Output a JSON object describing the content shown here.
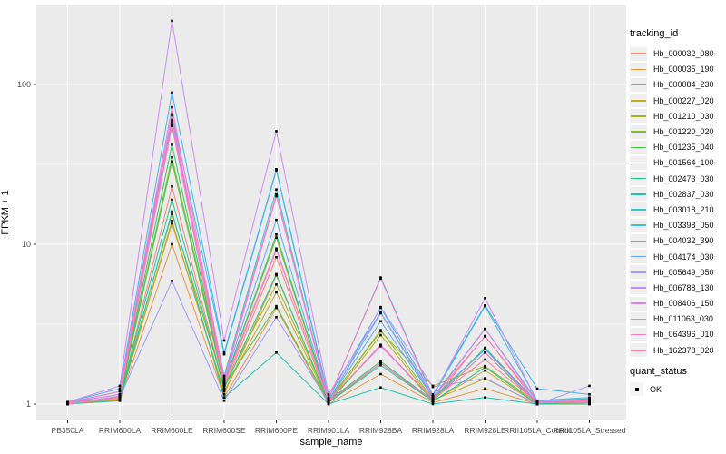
{
  "figure": {
    "background": "#FFFFFF",
    "panel_background": "#EBEBEB",
    "grid_color": "#FFFFFF",
    "axis_text_color": "#4D4D4D",
    "tick_color": "#333333",
    "point_color": "#000000"
  },
  "axes": {
    "x_title": "sample_name",
    "y_title": "FPKM + 1",
    "y_scale": "log10",
    "y_ticks": [
      1,
      10,
      100
    ],
    "y_minor_ticks": [
      3.162,
      31.62
    ]
  },
  "legend": {
    "tracking_title": "tracking_id",
    "quant_title": "quant_status",
    "quant_items": [
      {
        "label": "OK",
        "marker": "black-square"
      }
    ],
    "key_background": "#EFEFEF"
  },
  "chart_data": {
    "type": "line",
    "title": "",
    "xlabel": "sample_name",
    "ylabel": "FPKM + 1",
    "y_axis": "log10",
    "ylim": [
      1,
      300
    ],
    "grid": true,
    "legend_position": "right",
    "point_marker": "small black square (quant_status = OK)",
    "x": [
      "PB350LA",
      "RRIM600LA",
      "RRIM600LE",
      "RRIM600SE",
      "RRIM600PE",
      "RRIM901LA",
      "RRIM928BA",
      "RRIM928LA",
      "RRIM928LE",
      "RRII105LA_Control",
      "RRII105LA_Stressed"
    ],
    "series": [
      {
        "name": "Hb_000032_080",
        "color": "#F88379",
        "values": [
          1.0,
          1.08,
          23,
          1.25,
          8.3,
          1.02,
          1.8,
          1.05,
          2.67,
          1.0,
          1.02
        ]
      },
      {
        "name": "Hb_000035_190",
        "color": "#EC933F",
        "values": [
          1.0,
          1.05,
          10,
          1.1,
          4.0,
          1.0,
          1.54,
          1.02,
          1.25,
          1.0,
          1.0
        ]
      },
      {
        "name": "Hb_000084_230",
        "color": "#D9A026",
        "values": [
          1.0,
          1.06,
          14,
          1.15,
          6.4,
          1.02,
          1.8,
          1.04,
          1.62,
          1.0,
          1.0
        ]
      },
      {
        "name": "Hb_000227_020",
        "color": "#C2AB1F",
        "values": [
          1.0,
          1.07,
          13.5,
          1.2,
          5.0,
          1.03,
          2.7,
          1.06,
          1.44,
          1.0,
          1.02
        ]
      },
      {
        "name": "Hb_001210_030",
        "color": "#A6B122",
        "values": [
          1.0,
          1.1,
          15.5,
          1.3,
          5.6,
          1.05,
          2.85,
          1.3,
          1.73,
          1.02,
          1.05
        ]
      },
      {
        "name": "Hb_001220_020",
        "color": "#85BB30",
        "values": [
          1.0,
          1.12,
          35,
          1.35,
          11,
          1.04,
          2.9,
          1.08,
          2.2,
          1.02,
          1.05
        ]
      },
      {
        "name": "Hb_001235_040",
        "color": "#4FC24F",
        "values": [
          1.0,
          1.1,
          33,
          1.3,
          4.1,
          1.03,
          2.34,
          1.05,
          2.1,
          1.0,
          1.04
        ]
      },
      {
        "name": "Hb_001564_100",
        "color": "#2EC56E",
        "values": [
          1.0,
          1.12,
          42,
          1.35,
          11.5,
          1.05,
          1.85,
          1.06,
          2.25,
          1.02,
          1.05
        ]
      },
      {
        "name": "Hb_002473_030",
        "color": "#22C693",
        "values": [
          1.02,
          1.1,
          19,
          1.25,
          6.5,
          1.02,
          1.75,
          1.04,
          1.7,
          1.0,
          1.08
        ]
      },
      {
        "name": "Hb_002837_030",
        "color": "#25C3AE",
        "values": [
          1.0,
          1.05,
          16,
          1.1,
          2.1,
          1.0,
          1.27,
          1.0,
          1.1,
          1.0,
          1.0
        ]
      },
      {
        "name": "Hb_003018_210",
        "color": "#33C6CF",
        "values": [
          1.02,
          1.15,
          56,
          1.5,
          22,
          1.06,
          3.7,
          1.1,
          2.96,
          1.05,
          1.1
        ]
      },
      {
        "name": "Hb_003398_050",
        "color": "#3BBEE0",
        "values": [
          1.02,
          1.2,
          65,
          2.05,
          29,
          1.07,
          6.2,
          1.12,
          4.1,
          1.05,
          1.08
        ]
      },
      {
        "name": "Hb_004032_390",
        "color": "#41B4F4",
        "values": [
          1.03,
          1.25,
          89,
          2.1,
          29.5,
          1.1,
          4.0,
          1.15,
          4.15,
          1.25,
          1.15
        ]
      },
      {
        "name": "Hb_004174_030",
        "color": "#64A7FA",
        "values": [
          1.02,
          1.15,
          60,
          1.4,
          14.2,
          1.05,
          3.3,
          1.1,
          2.2,
          1.03,
          1.06
        ]
      },
      {
        "name": "Hb_005649_050",
        "color": "#9F9BFA",
        "values": [
          1.0,
          1.1,
          5.9,
          1.05,
          3.5,
          1.02,
          4.05,
          1.28,
          1.45,
          1.0,
          1.3
        ]
      },
      {
        "name": "Hb_006788_130",
        "color": "#CB8CF8",
        "values": [
          1.03,
          1.3,
          250,
          2.5,
          51,
          1.15,
          3.75,
          1.12,
          4.6,
          1.04,
          1.06
        ]
      },
      {
        "name": "Hb_008406_150",
        "color": "#E381F0",
        "values": [
          1.02,
          1.15,
          58,
          1.4,
          20,
          1.06,
          2.3,
          1.08,
          2.95,
          1.03,
          1.05
        ]
      },
      {
        "name": "Hb_011063_030",
        "color": "#F678DE",
        "values": [
          1.0,
          1.12,
          64,
          1.35,
          9.4,
          1.04,
          1.8,
          1.06,
          2.1,
          1.02,
          1.04
        ]
      },
      {
        "name": "Hb_064396_010",
        "color": "#F97BC2",
        "values": [
          1.02,
          1.2,
          72,
          1.45,
          20.5,
          1.08,
          6.1,
          1.1,
          2.65,
          1.04,
          1.06
        ]
      },
      {
        "name": "Hb_162378_020",
        "color": "#FB82A4",
        "values": [
          1.0,
          1.1,
          55,
          1.3,
          9.2,
          1.05,
          2.35,
          1.07,
          1.9,
          1.02,
          1.03
        ]
      }
    ]
  }
}
